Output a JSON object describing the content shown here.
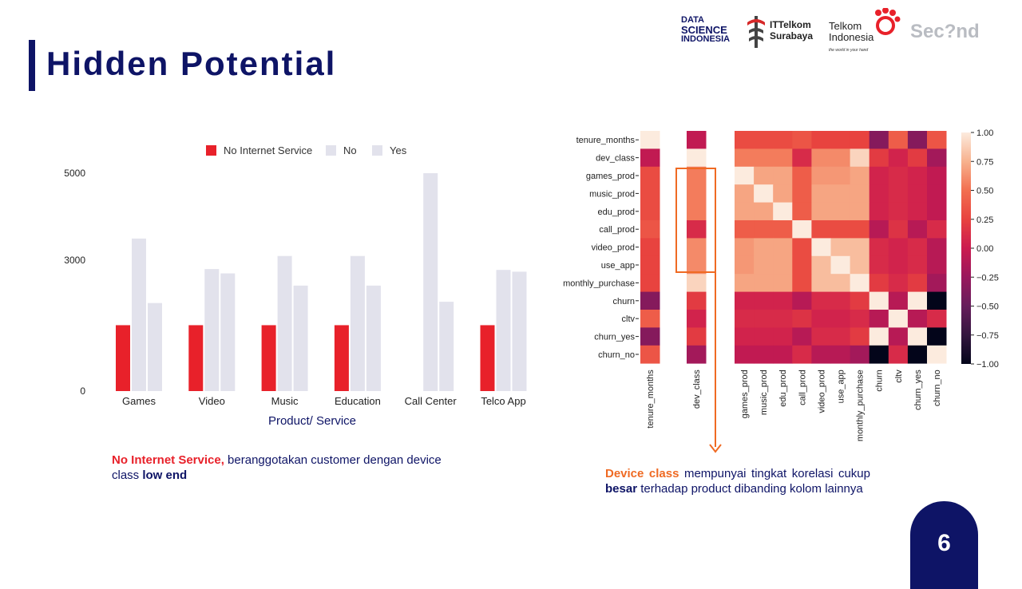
{
  "slide": {
    "title": "Hidden Potential",
    "page_number": "6"
  },
  "logos": {
    "data_science_indonesia": [
      "DATA",
      "SCIENCE",
      "INDONESIA"
    ],
    "ittelkom": [
      "ITTelkom",
      "Surabaya"
    ],
    "telkom_indonesia": [
      "Telkom",
      "Indonesia"
    ],
    "telkom_tagline": "the world in your hand",
    "second": "Sec?nd"
  },
  "notes": {
    "left_highlight": "No Internet Service,",
    "left_rest_1": " beranggotakan customer dengan device class ",
    "left_bold": "low end",
    "right_highlight": "Device class",
    "right_rest_1": " mempunyai tingkat korelasi cukup ",
    "right_bold": "besar",
    "right_rest_2": " terhadap product dibanding kolom lainnya"
  },
  "colors": {
    "navy": "#0e1466",
    "red": "#e8212a",
    "orange": "#ef6a23",
    "light_bar": "#e2e2ec"
  },
  "chart_data": [
    {
      "type": "bar",
      "xlabel": "Product/ Service",
      "ylabel": "",
      "ylim": [
        0,
        5000
      ],
      "yticks": [
        0,
        3000,
        5000
      ],
      "legend_position": "top-center",
      "categories": [
        "Games",
        "Video",
        "Music",
        "Education",
        "Call Center",
        "Telco App"
      ],
      "series": [
        {
          "name": "No Internet Service",
          "color": "#e8212a",
          "values": [
            1512,
            1512,
            1512,
            1512,
            0,
            1512
          ]
        },
        {
          "name": "No",
          "color": "#e2e2ec",
          "values": [
            3500,
            2800,
            3100,
            3100,
            5000,
            2780
          ]
        },
        {
          "name": "Yes",
          "color": "#e2e2ec",
          "values": [
            2020,
            2700,
            2420,
            2420,
            2050,
            2740
          ]
        }
      ]
    },
    {
      "type": "heatmap",
      "xlabel": "",
      "ylabel": "",
      "labels": [
        "tenure_months",
        "dev_class",
        "games_prod",
        "music_prod",
        "edu_prod",
        "call_prod",
        "video_prod",
        "use_app",
        "monthly_purchase",
        "churn",
        "cltv",
        "churn_yes",
        "churn_no"
      ],
      "colorbar_ticks": [
        1.0,
        0.75,
        0.5,
        0.25,
        0.0,
        -0.25,
        -0.5,
        -0.75,
        -1.0
      ],
      "value_range": [
        -1,
        1
      ],
      "matrix": [
        [
          1.0,
          -0.05,
          0.3,
          0.3,
          0.3,
          0.35,
          0.25,
          0.25,
          0.25,
          -0.35,
          0.4,
          -0.35,
          0.35
        ],
        [
          -0.05,
          1.0,
          0.55,
          0.55,
          0.55,
          0.1,
          0.6,
          0.6,
          0.9,
          0.2,
          0.05,
          0.2,
          -0.2
        ],
        [
          0.3,
          0.55,
          1.0,
          0.7,
          0.7,
          0.4,
          0.65,
          0.65,
          0.7,
          0.05,
          0.1,
          0.05,
          -0.05
        ],
        [
          0.3,
          0.55,
          0.7,
          1.0,
          0.7,
          0.4,
          0.7,
          0.7,
          0.7,
          0.05,
          0.1,
          0.05,
          -0.05
        ],
        [
          0.3,
          0.55,
          0.7,
          0.7,
          1.0,
          0.4,
          0.7,
          0.7,
          0.7,
          0.05,
          0.1,
          0.05,
          -0.05
        ],
        [
          0.35,
          0.1,
          0.4,
          0.4,
          0.4,
          1.0,
          0.3,
          0.3,
          0.3,
          -0.1,
          0.15,
          -0.1,
          0.1
        ],
        [
          0.25,
          0.6,
          0.65,
          0.7,
          0.7,
          0.3,
          1.0,
          0.8,
          0.8,
          0.1,
          0.05,
          0.1,
          -0.1
        ],
        [
          0.25,
          0.6,
          0.65,
          0.7,
          0.7,
          0.3,
          0.8,
          1.0,
          0.8,
          0.1,
          0.05,
          0.1,
          -0.1
        ],
        [
          0.25,
          0.9,
          0.7,
          0.7,
          0.7,
          0.3,
          0.8,
          0.8,
          1.0,
          0.2,
          0.1,
          0.2,
          -0.2
        ],
        [
          -0.35,
          0.2,
          0.05,
          0.05,
          0.05,
          -0.1,
          0.1,
          0.1,
          0.2,
          1.0,
          -0.1,
          1.0,
          -1.0
        ],
        [
          0.4,
          0.05,
          0.1,
          0.1,
          0.1,
          0.15,
          0.05,
          0.05,
          0.1,
          -0.1,
          1.0,
          -0.1,
          0.1
        ],
        [
          -0.35,
          0.2,
          0.05,
          0.05,
          0.05,
          -0.1,
          0.1,
          0.1,
          0.2,
          1.0,
          -0.1,
          1.0,
          -1.0
        ],
        [
          0.35,
          -0.2,
          -0.05,
          -0.05,
          -0.05,
          0.1,
          -0.1,
          -0.1,
          -0.2,
          -1.0,
          0.1,
          -1.0,
          1.0
        ]
      ]
    }
  ]
}
